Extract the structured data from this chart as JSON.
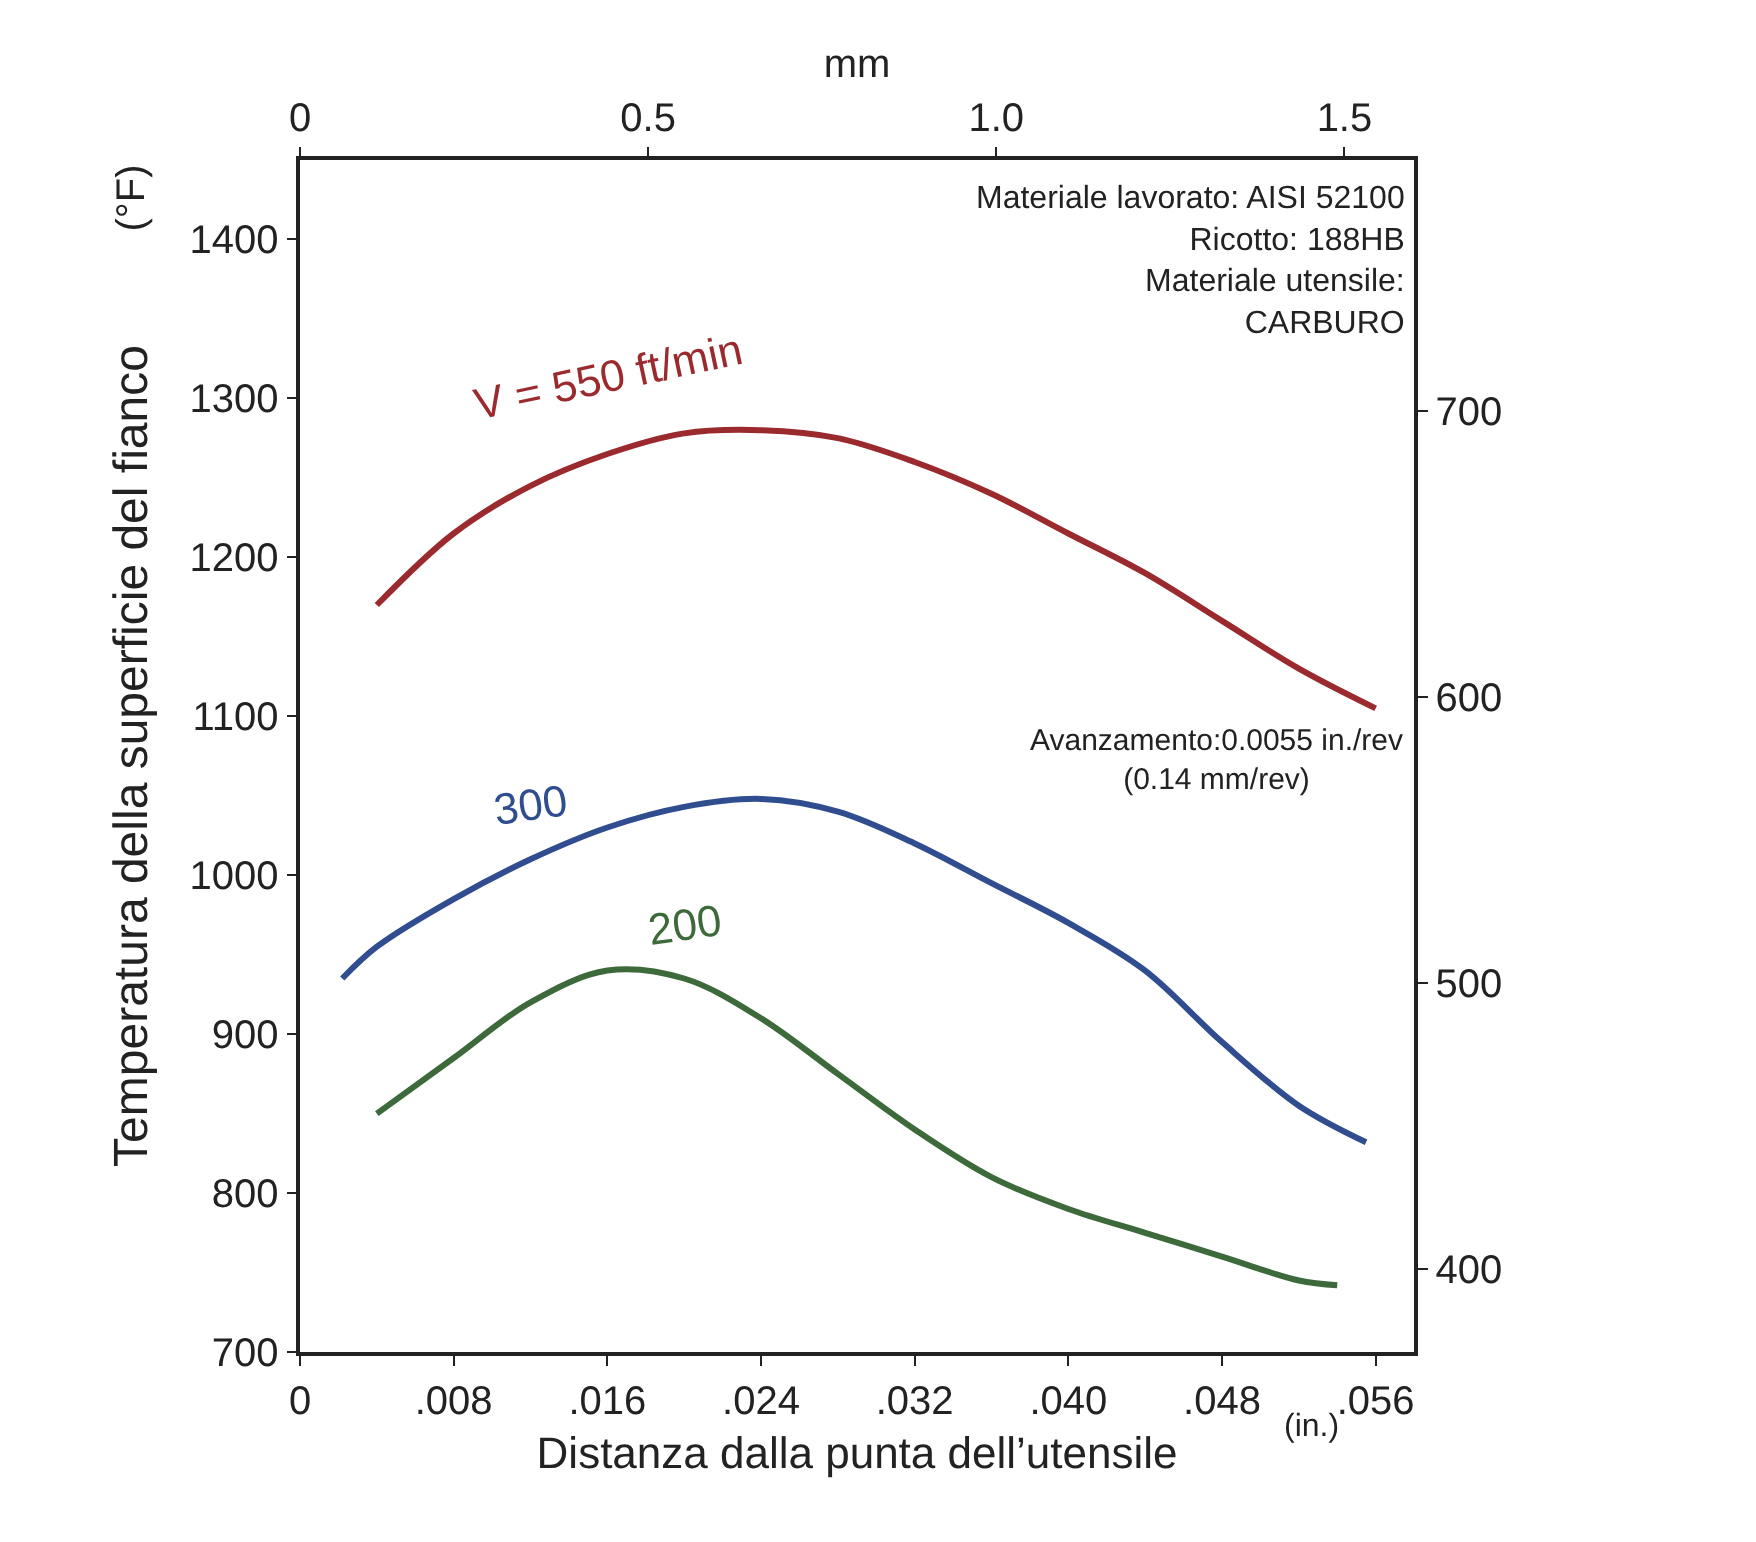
{
  "chart_data": {
    "type": "line",
    "xlabel": "Distanza dalla punta dell’utensile",
    "ylabel": "Temperatura della superficie del fianco",
    "x2label": "mm",
    "xlim": [
      0,
      0.058
    ],
    "xticks": [
      0,
      {
        "value": 0.008,
        "label": ".008"
      },
      {
        "value": 0.016,
        "label": ".016"
      },
      {
        "value": 0.024,
        "label": ".024"
      },
      {
        "value": 0.032,
        "label": ".032"
      },
      {
        "value": 0.04,
        "label": ".040"
      },
      {
        "value": 0.048,
        "label": ".048"
      },
      {
        "value": 0.056,
        "label": ".056"
      }
    ],
    "x2lim": [
      0,
      1.6
    ],
    "x2ticks": [
      0,
      0.5,
      {
        "value": 1.0,
        "label": "1.0"
      },
      1.5
    ],
    "ylim": [
      700,
      1450
    ],
    "yticks": [
      700,
      800,
      900,
      1000,
      1100,
      1200,
      1300,
      1400
    ],
    "y2lim": [
      371.1,
      787.8
    ],
    "y2ticks": [
      400,
      500,
      600,
      700
    ],
    "legend": false,
    "marker": "none",
    "line_style": "solid",
    "series": [
      {
        "color": "#9b2a2e",
        "x": [
          0.004,
          0.008,
          0.012,
          0.016,
          0.02,
          0.024,
          0.028,
          0.032,
          0.036,
          0.04,
          0.044,
          0.048,
          0.052,
          0.056
        ],
        "values": [
          1170,
          1215,
          1245,
          1265,
          1278,
          1280,
          1275,
          1260,
          1240,
          1215,
          1190,
          1160,
          1130,
          1105
        ]
      },
      {
        "color": "#2f4d8f",
        "x": [
          0.0022,
          0.004,
          0.008,
          0.012,
          0.016,
          0.02,
          0.024,
          0.028,
          0.032,
          0.036,
          0.04,
          0.044,
          0.048,
          0.052,
          0.0555
        ],
        "values": [
          935,
          955,
          985,
          1010,
          1030,
          1043,
          1048,
          1040,
          1020,
          995,
          970,
          940,
          895,
          855,
          832
        ]
      },
      {
        "color": "#3d6a3a",
        "x": [
          0.004,
          0.008,
          0.012,
          0.016,
          0.02,
          0.024,
          0.028,
          0.032,
          0.036,
          0.04,
          0.044,
          0.048,
          0.052,
          0.054
        ],
        "values": [
          850,
          885,
          920,
          940,
          935,
          910,
          875,
          840,
          810,
          790,
          775,
          760,
          745,
          742
        ]
      }
    ],
    "annotations": [
      "V = 550 ft/min",
      "300",
      "200",
      "(in.)",
      "(°F)",
      "Materiale lavorato: AISI 52100\nRicotto: 188HB\nMateriale utensile:\nCARBURO",
      "Avanzamento:0.0055 in./rev\n(0.14 mm/rev)"
    ]
  }
}
